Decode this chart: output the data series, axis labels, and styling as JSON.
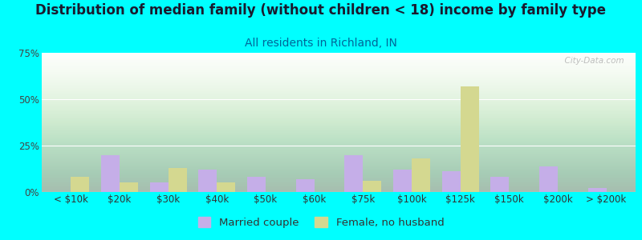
{
  "title": "Distribution of median family (without children < 18) income by family type",
  "subtitle": "All residents in Richland, IN",
  "background_color": "#00FFFF",
  "categories": [
    "< $10k",
    "$20k",
    "$30k",
    "$40k",
    "$50k",
    "$60k",
    "$75k",
    "$100k",
    "$125k",
    "$150k",
    "$200k",
    "> $200k"
  ],
  "married_couple": [
    0,
    20,
    5,
    12,
    8,
    7,
    20,
    12,
    11,
    8,
    14,
    2
  ],
  "female_no_husband": [
    8,
    5,
    13,
    5,
    0,
    0,
    6,
    18,
    57,
    0,
    0,
    0
  ],
  "married_color": "#c5aee8",
  "female_color": "#d4d890",
  "ylim": [
    0,
    75
  ],
  "yticks": [
    0,
    25,
    50,
    75
  ],
  "ytick_labels": [
    "0%",
    "25%",
    "50%",
    "75%"
  ],
  "watermark": "  City-Data.com",
  "bar_width": 0.38,
  "title_fontsize": 12,
  "subtitle_fontsize": 10,
  "axis_fontsize": 8.5,
  "legend_fontsize": 9.5
}
